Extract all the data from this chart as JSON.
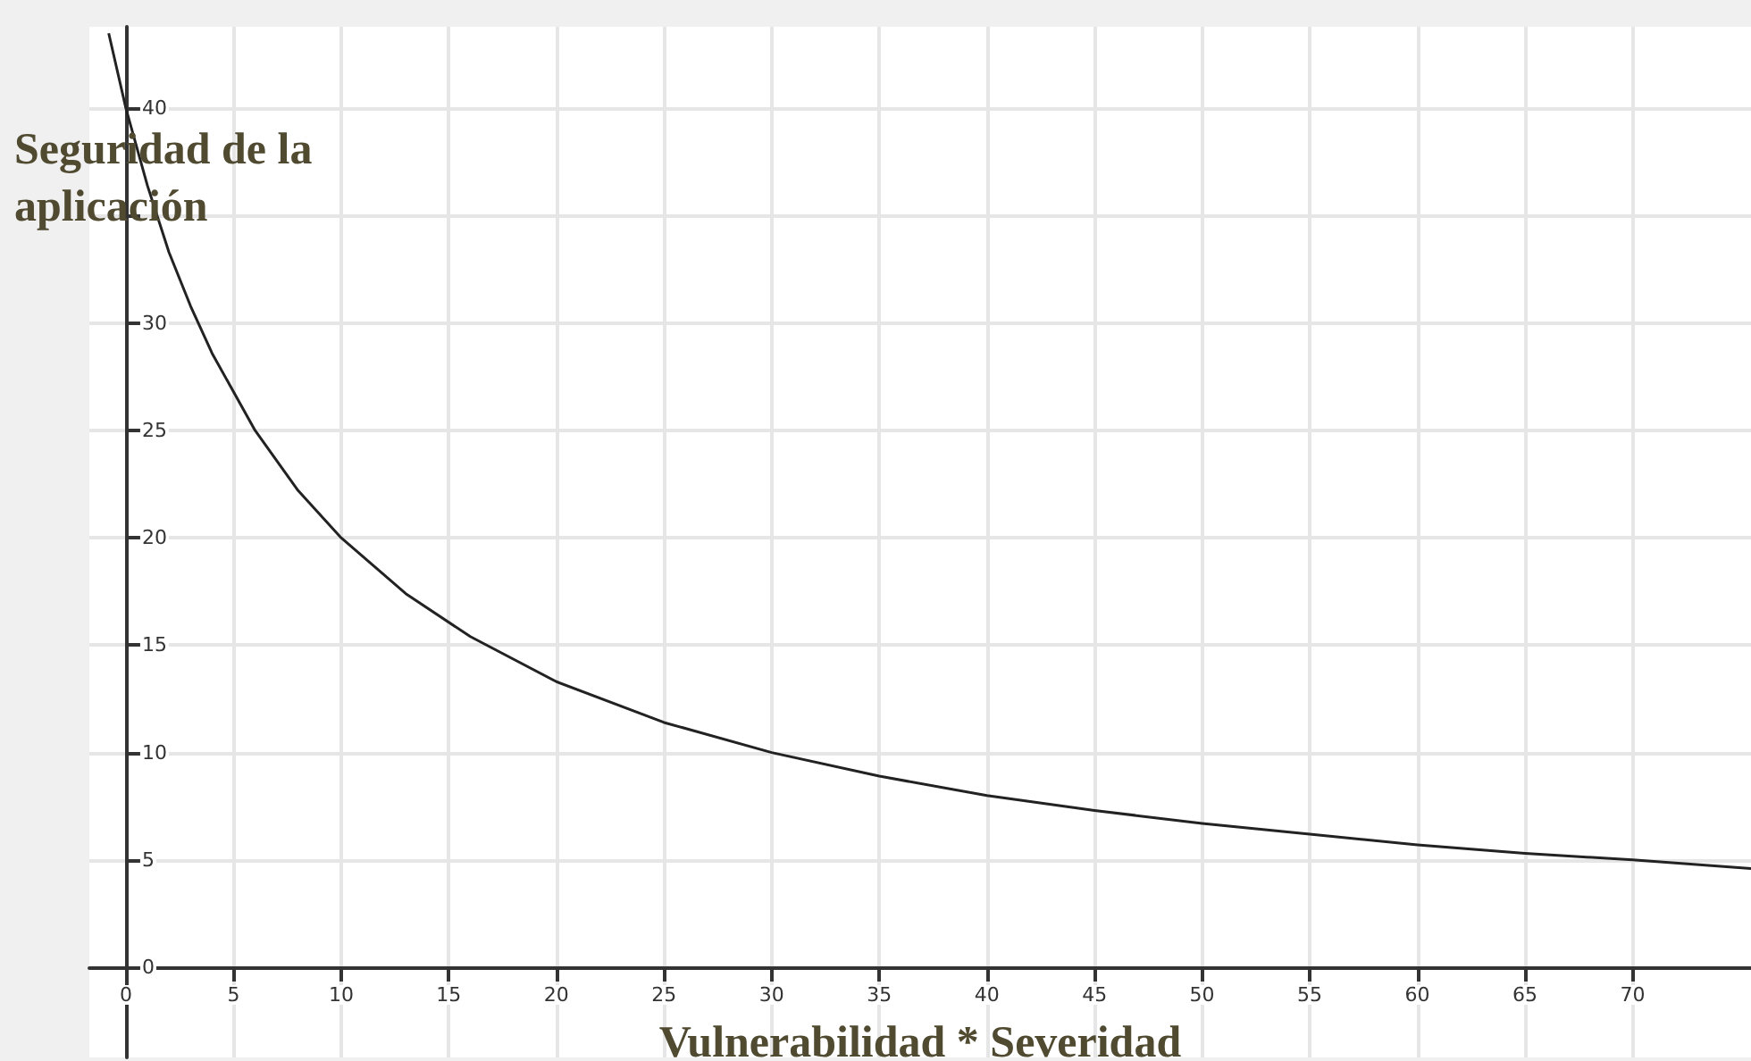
{
  "chart_data": {
    "type": "line",
    "xlabel": "Vulnerabilidad * Severidad",
    "ylabel": "Seguridad de la aplicación",
    "x": [
      -0.8,
      0,
      1,
      2,
      3,
      4,
      6,
      8,
      10,
      13,
      16,
      20,
      25,
      30,
      35,
      40,
      45,
      50,
      55,
      60,
      65,
      70,
      75.5
    ],
    "series": [
      {
        "color": "#222222",
        "values": [
          43.5,
          40,
          36.4,
          33.3,
          30.8,
          28.6,
          25,
          22.2,
          20,
          17.4,
          15.4,
          13.3,
          11.4,
          10,
          8.9,
          8,
          7.3,
          6.7,
          6.2,
          5.7,
          5.3,
          5,
          4.6
        ]
      }
    ],
    "xlim": [
      -1.7,
      75.5
    ],
    "ylim": [
      -4.2,
      43.8
    ],
    "xticks": [
      0,
      5,
      10,
      15,
      20,
      25,
      30,
      35,
      40,
      45,
      50,
      55,
      60,
      65,
      70
    ],
    "yticks": [
      0,
      5,
      10,
      15,
      20,
      25,
      30,
      {
        "value": 35,
        "label": null
      },
      40
    ],
    "grid": true
  }
}
